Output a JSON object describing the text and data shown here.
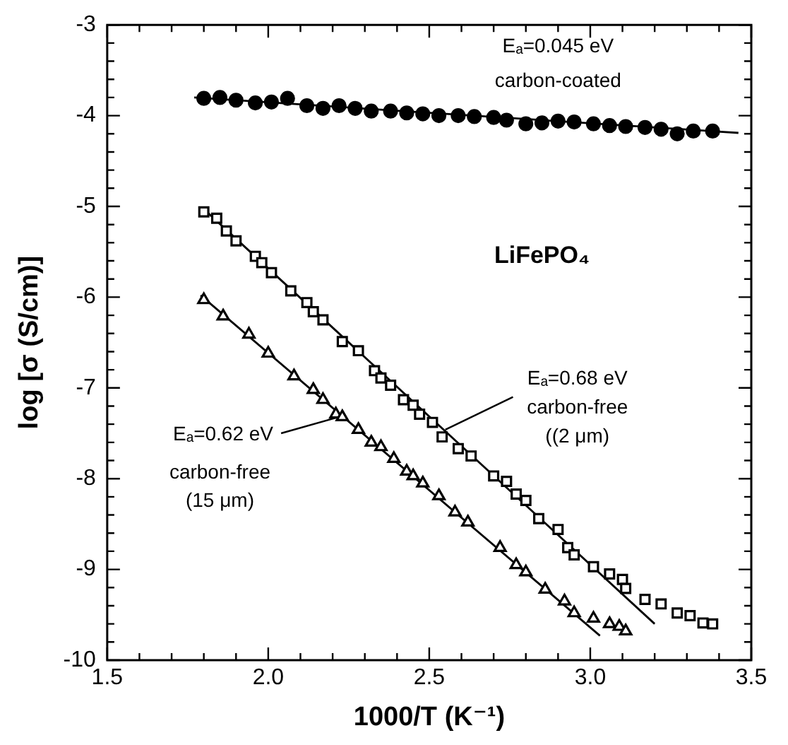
{
  "chart_data": {
    "type": "scatter",
    "xlabel": "1000/T (K⁻¹)",
    "ylabel": "log [σ (S/cm)]",
    "xlim": [
      1.5,
      3.5
    ],
    "xticks": [
      1.5,
      {
        "value": 1.6,
        "label": null
      },
      {
        "value": 1.7,
        "label": null
      },
      {
        "value": 1.8,
        "label": null
      },
      {
        "value": 1.9,
        "label": null
      },
      {
        "value": 2,
        "label": "2.0"
      },
      {
        "value": 2.1,
        "label": null
      },
      {
        "value": 2.2,
        "label": null
      },
      {
        "value": 2.3,
        "label": null
      },
      {
        "value": 2.4,
        "label": null
      },
      2.5,
      {
        "value": 2.6,
        "label": null
      },
      {
        "value": 2.7,
        "label": null
      },
      {
        "value": 2.8,
        "label": null
      },
      {
        "value": 2.9,
        "label": null
      },
      {
        "value": 3,
        "label": "3.0"
      },
      {
        "value": 3.1,
        "label": null
      },
      {
        "value": 3.2,
        "label": null
      },
      {
        "value": 3.3,
        "label": null
      },
      {
        "value": 3.4,
        "label": null
      },
      3.5
    ],
    "ylim": [
      -10,
      -3
    ],
    "yticks": [
      -10,
      {
        "value": -9.8,
        "label": null
      },
      {
        "value": -9.6,
        "label": null
      },
      {
        "value": -9.4,
        "label": null
      },
      {
        "value": -9.2,
        "label": null
      },
      -9,
      {
        "value": -8.8,
        "label": null
      },
      {
        "value": -8.6,
        "label": null
      },
      {
        "value": -8.4,
        "label": null
      },
      {
        "value": -8.2,
        "label": null
      },
      -8,
      {
        "value": -7.8,
        "label": null
      },
      {
        "value": -7.6,
        "label": null
      },
      {
        "value": -7.4,
        "label": null
      },
      {
        "value": -7.2,
        "label": null
      },
      -7,
      {
        "value": -6.8,
        "label": null
      },
      {
        "value": -6.6,
        "label": null
      },
      {
        "value": -6.4,
        "label": null
      },
      {
        "value": -6.2,
        "label": null
      },
      -6,
      {
        "value": -5.8,
        "label": null
      },
      {
        "value": -5.6,
        "label": null
      },
      {
        "value": -5.4,
        "label": null
      },
      {
        "value": -5.2,
        "label": null
      },
      -5,
      {
        "value": -4.8,
        "label": null
      },
      {
        "value": -4.6,
        "label": null
      },
      {
        "value": -4.4,
        "label": null
      },
      {
        "value": -4.2,
        "label": null
      },
      -4,
      {
        "value": -3.8,
        "label": null
      },
      {
        "value": -3.6,
        "label": null
      },
      {
        "value": -3.4,
        "label": null
      },
      {
        "value": -3.2,
        "label": null
      },
      -3
    ],
    "grid": false,
    "legend": false,
    "series": [
      {
        "marker": "circle",
        "color": "#000000",
        "x": [
          1.8,
          1.85,
          1.9,
          1.96,
          2.01,
          2.06,
          2.12,
          2.17,
          2.22,
          2.27,
          2.32,
          2.38,
          2.43,
          2.48,
          2.53,
          2.59,
          2.64,
          2.7,
          2.74,
          2.8,
          2.85,
          2.9,
          2.95,
          3.01,
          3.06,
          3.11,
          3.17,
          3.22,
          3.27,
          3.32,
          3.38
        ],
        "values": [
          -3.81,
          -3.8,
          -3.83,
          -3.86,
          -3.85,
          -3.81,
          -3.89,
          -3.92,
          -3.89,
          -3.92,
          -3.95,
          -3.95,
          -3.97,
          -3.98,
          -4.0,
          -4.0,
          -4.01,
          -4.02,
          -4.05,
          -4.09,
          -4.08,
          -4.06,
          -4.07,
          -4.09,
          -4.11,
          -4.12,
          -4.13,
          -4.15,
          -4.2,
          -4.17,
          -4.17
        ]
      },
      {
        "marker": "square",
        "color": "#000000",
        "x": [
          1.8,
          1.84,
          1.87,
          1.9,
          1.96,
          1.98,
          2.01,
          2.07,
          2.12,
          2.14,
          2.17,
          2.23,
          2.28,
          2.33,
          2.35,
          2.38,
          2.42,
          2.45,
          2.47,
          2.51,
          2.54,
          2.59,
          2.63,
          2.7,
          2.74,
          2.77,
          2.8,
          2.84,
          2.9,
          2.93,
          2.95,
          3.01,
          3.06,
          3.1,
          3.11,
          3.17,
          3.22,
          3.27,
          3.31,
          3.35,
          3.38
        ],
        "values": [
          -5.06,
          -5.13,
          -5.27,
          -5.38,
          -5.55,
          -5.62,
          -5.73,
          -5.93,
          -6.06,
          -6.16,
          -6.25,
          -6.49,
          -6.59,
          -6.81,
          -6.89,
          -6.97,
          -7.13,
          -7.19,
          -7.29,
          -7.38,
          -7.54,
          -7.67,
          -7.75,
          -7.97,
          -8.03,
          -8.17,
          -8.24,
          -8.44,
          -8.56,
          -8.76,
          -8.84,
          -8.97,
          -9.05,
          -9.11,
          -9.21,
          -9.33,
          -9.38,
          -9.48,
          -9.51,
          -9.59,
          -9.6
        ]
      },
      {
        "marker": "triangle",
        "color": "#000000",
        "x": [
          1.8,
          1.86,
          1.94,
          2.0,
          2.08,
          2.14,
          2.17,
          2.21,
          2.23,
          2.28,
          2.32,
          2.35,
          2.39,
          2.43,
          2.45,
          2.48,
          2.53,
          2.58,
          2.62,
          2.72,
          2.77,
          2.8,
          2.86,
          2.92,
          2.95,
          3.01,
          3.06,
          3.09,
          3.11
        ],
        "values": [
          -6.03,
          -6.21,
          -6.41,
          -6.62,
          -6.87,
          -7.02,
          -7.13,
          -7.29,
          -7.32,
          -7.46,
          -7.6,
          -7.65,
          -7.78,
          -7.92,
          -7.97,
          -8.05,
          -8.19,
          -8.37,
          -8.48,
          -8.76,
          -8.95,
          -9.03,
          -9.22,
          -9.35,
          -9.48,
          -9.54,
          -9.6,
          -9.63,
          -9.68
        ]
      },
      {
        "type": "line",
        "marker": "none",
        "color": "#000000",
        "x": [
          1.77,
          3.46
        ],
        "values": [
          -3.8,
          -4.19
        ]
      },
      {
        "type": "line",
        "marker": "none",
        "color": "#000000",
        "x": [
          1.8,
          3.2
        ],
        "values": [
          -5.03,
          -9.6
        ]
      },
      {
        "type": "line",
        "marker": "none",
        "color": "#000000",
        "x": [
          1.79,
          3.03
        ],
        "values": [
          -5.98,
          -9.73
        ]
      }
    ],
    "annotations": [
      "Eₐ=0.045 eV",
      "carbon-coated",
      "LiFePO₄",
      {
        "text": "Eₐ=0.68 eV",
        "x": 2.55,
        "y": -7.46
      },
      "carbon-free",
      "((2 μm)",
      {
        "text": "Eₐ=0.62 eV",
        "x": 2.21,
        "y": -7.33
      },
      "carbon-free",
      "(15 μm)"
    ]
  }
}
